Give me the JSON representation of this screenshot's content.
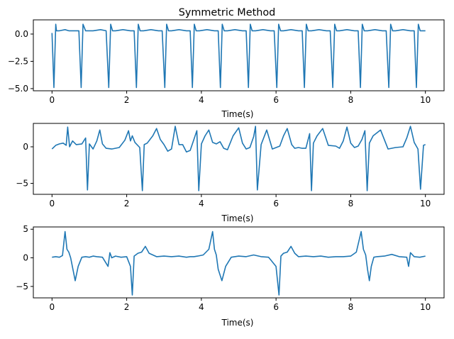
{
  "chart_data": [
    {
      "type": "line",
      "title": "Symmetric Method",
      "xlabel": "Time(s)",
      "ylabel": "",
      "xlim": [
        -0.5,
        10.5
      ],
      "ylim": [
        -5.2,
        1.3
      ],
      "xticks": [
        0,
        2,
        4,
        6,
        8,
        10
      ],
      "xtick_labels": [
        "0",
        "2",
        "4",
        "6",
        "8",
        "10"
      ],
      "yticks": [
        0,
        -2.5,
        -5
      ],
      "ytick_labels": [
        "0.0",
        "−2.5",
        "−5.0"
      ],
      "series": [
        {
          "color": "#1f77b4",
          "x": [
            0.0,
            0.05,
            0.1,
            0.12,
            0.2,
            0.35,
            0.45,
            0.6,
            0.72,
            0.78,
            0.83,
            0.9,
            1.1,
            1.3,
            1.45,
            1.52,
            1.57,
            1.62,
            1.7,
            1.9,
            2.1,
            2.2,
            2.26,
            2.31,
            2.36,
            2.45,
            2.65,
            2.85,
            2.95,
            3.02,
            3.07,
            3.12,
            3.2,
            3.4,
            3.6,
            3.7,
            3.76,
            3.81,
            3.86,
            3.95,
            4.15,
            4.35,
            4.45,
            4.51,
            4.56,
            4.61,
            4.7,
            4.9,
            5.1,
            5.2,
            5.26,
            5.31,
            5.36,
            5.45,
            5.65,
            5.85,
            5.95,
            6.02,
            6.07,
            6.12,
            6.2,
            6.4,
            6.6,
            6.7,
            6.76,
            6.81,
            6.86,
            6.95,
            7.15,
            7.35,
            7.45,
            7.52,
            7.57,
            7.62,
            7.7,
            7.9,
            8.1,
            8.2,
            8.26,
            8.31,
            8.36,
            8.45,
            8.65,
            8.85,
            8.95,
            9.02,
            9.07,
            9.12,
            9.2,
            9.4,
            9.6,
            9.7,
            9.76,
            9.81,
            9.86,
            9.95,
            10.0
          ],
          "y": [
            0.1,
            -4.9,
            0.9,
            0.3,
            0.3,
            0.4,
            0.3,
            0.3,
            0.3,
            -4.9,
            0.9,
            0.3,
            0.3,
            0.4,
            0.3,
            -4.9,
            0.9,
            0.3,
            0.3,
            0.4,
            0.3,
            0.3,
            -4.9,
            0.9,
            0.3,
            0.3,
            0.4,
            0.3,
            0.3,
            -4.9,
            0.9,
            0.3,
            0.3,
            0.4,
            0.3,
            0.3,
            -4.9,
            0.9,
            0.3,
            0.3,
            0.4,
            0.3,
            0.3,
            -4.9,
            0.9,
            0.3,
            0.3,
            0.4,
            0.3,
            0.3,
            -4.9,
            0.9,
            0.3,
            0.3,
            0.4,
            0.3,
            0.3,
            -4.9,
            0.9,
            0.3,
            0.3,
            0.4,
            0.3,
            0.3,
            -4.9,
            0.9,
            0.3,
            0.3,
            0.4,
            0.3,
            0.3,
            -4.9,
            0.9,
            0.3,
            0.3,
            0.4,
            0.3,
            0.3,
            -4.9,
            0.9,
            0.3,
            0.3,
            0.4,
            0.3,
            0.3,
            -4.9,
            0.9,
            0.3,
            0.3,
            0.4,
            0.3,
            0.3,
            -4.9,
            0.9,
            0.3,
            0.3,
            0.3
          ]
        }
      ]
    },
    {
      "type": "line",
      "title": "",
      "xlabel": "Time(s)",
      "ylabel": "",
      "xlim": [
        -0.5,
        10.5
      ],
      "ylim": [
        -6.5,
        3.2
      ],
      "xticks": [
        0,
        2,
        4,
        6,
        8,
        10
      ],
      "xtick_labels": [
        "0",
        "2",
        "4",
        "6",
        "8",
        "10"
      ],
      "yticks": [
        0,
        -5
      ],
      "ytick_labels": [
        "0",
        "−5"
      ],
      "series": [
        {
          "color": "#1f77b4",
          "x": [
            0.0,
            0.1,
            0.2,
            0.3,
            0.38,
            0.42,
            0.47,
            0.55,
            0.65,
            0.8,
            0.9,
            0.95,
            1.0,
            1.1,
            1.2,
            1.28,
            1.35,
            1.45,
            1.6,
            1.8,
            1.95,
            2.05,
            2.1,
            2.15,
            2.22,
            2.35,
            2.42,
            2.47,
            2.55,
            2.7,
            2.8,
            2.9,
            3.0,
            3.1,
            3.2,
            3.3,
            3.4,
            3.5,
            3.6,
            3.7,
            3.8,
            3.88,
            3.93,
            4.0,
            4.1,
            4.2,
            4.3,
            4.4,
            4.5,
            4.6,
            4.7,
            4.85,
            5.0,
            5.1,
            5.2,
            5.3,
            5.4,
            5.45,
            5.5,
            5.6,
            5.75,
            5.9,
            6.1,
            6.2,
            6.3,
            6.42,
            6.5,
            6.6,
            6.7,
            6.8,
            6.9,
            6.95,
            7.0,
            7.1,
            7.25,
            7.4,
            7.6,
            7.7,
            7.8,
            7.9,
            8.0,
            8.1,
            8.2,
            8.3,
            8.38,
            8.44,
            8.5,
            8.6,
            8.8,
            9.0,
            9.2,
            9.4,
            9.5,
            9.6,
            9.7,
            9.8,
            9.87,
            9.95,
            10.0
          ],
          "y": [
            -0.3,
            0.2,
            0.4,
            0.5,
            0.2,
            2.7,
            0.0,
            0.8,
            0.3,
            0.4,
            1.2,
            -5.9,
            0.4,
            -0.3,
            0.8,
            2.3,
            0.4,
            -0.2,
            -0.3,
            -0.1,
            0.9,
            2.2,
            0.8,
            1.5,
            0.6,
            -0.1,
            -6.0,
            0.3,
            0.5,
            1.5,
            2.5,
            1.0,
            0.3,
            -0.6,
            -0.3,
            2.8,
            0.3,
            0.3,
            -0.7,
            -0.5,
            1.0,
            2.2,
            -6.0,
            0.4,
            1.5,
            2.3,
            0.6,
            0.4,
            0.7,
            -0.2,
            -0.4,
            1.5,
            2.6,
            0.5,
            -0.3,
            -0.1,
            1.4,
            2.8,
            -5.9,
            0.3,
            2.3,
            -0.3,
            0.1,
            1.5,
            2.5,
            0.3,
            -0.2,
            -0.1,
            -0.2,
            -0.2,
            1.8,
            -6.0,
            0.5,
            1.5,
            2.5,
            0.2,
            0.1,
            -0.2,
            0.8,
            2.7,
            0.5,
            -0.1,
            0.1,
            1.0,
            2.2,
            -6.0,
            0.5,
            1.5,
            2.3,
            -0.3,
            -0.1,
            0.0,
            1.2,
            2.8,
            0.6,
            -0.3,
            -5.8,
            0.2,
            0.3
          ]
        }
      ]
    },
    {
      "type": "line",
      "title": "",
      "xlabel": "Time(s)",
      "ylabel": "",
      "xlim": [
        -0.5,
        10.5
      ],
      "ylim": [
        -7.0,
        5.4
      ],
      "xticks": [
        0,
        2,
        4,
        6,
        8,
        10
      ],
      "xtick_labels": [
        "0",
        "2",
        "4",
        "6",
        "8",
        "10"
      ],
      "yticks": [
        5,
        0,
        -5
      ],
      "ytick_labels": [
        "5",
        "0",
        "−5"
      ],
      "series": [
        {
          "color": "#1f77b4",
          "x": [
            0.0,
            0.1,
            0.2,
            0.28,
            0.35,
            0.4,
            0.45,
            0.5,
            0.56,
            0.62,
            0.7,
            0.8,
            0.9,
            1.0,
            1.1,
            1.2,
            1.35,
            1.5,
            1.55,
            1.6,
            1.7,
            1.85,
            2.0,
            2.1,
            2.15,
            2.2,
            2.3,
            2.4,
            2.5,
            2.6,
            2.8,
            3.0,
            3.2,
            3.4,
            3.6,
            3.7,
            3.8,
            3.9,
            4.05,
            4.2,
            4.3,
            4.35,
            4.4,
            4.45,
            4.55,
            4.65,
            4.8,
            5.0,
            5.2,
            5.4,
            5.6,
            5.8,
            6.0,
            6.08,
            6.13,
            6.2,
            6.3,
            6.4,
            6.5,
            6.6,
            6.8,
            7.0,
            7.2,
            7.4,
            7.6,
            7.8,
            8.0,
            8.15,
            8.28,
            8.34,
            8.4,
            8.45,
            8.5,
            8.55,
            8.62,
            8.7,
            8.9,
            9.1,
            9.3,
            9.5,
            9.55,
            9.6,
            9.7,
            9.85,
            10.0
          ],
          "y": [
            0.1,
            0.2,
            0.1,
            0.4,
            4.6,
            1.5,
            1.0,
            0.0,
            -2.0,
            -4.0,
            -1.5,
            0.1,
            0.2,
            0.1,
            0.3,
            0.2,
            0.1,
            -1.5,
            0.9,
            0.0,
            0.3,
            0.1,
            0.2,
            -1.5,
            -6.5,
            0.3,
            0.8,
            1.0,
            2.0,
            0.8,
            0.2,
            0.3,
            0.2,
            0.3,
            0.1,
            0.2,
            0.2,
            0.3,
            0.5,
            1.5,
            4.6,
            1.5,
            0.5,
            -2.0,
            -4.0,
            -1.5,
            0.1,
            0.3,
            0.2,
            0.5,
            0.2,
            0.1,
            -1.5,
            -6.5,
            0.3,
            0.8,
            1.0,
            2.0,
            0.8,
            0.2,
            0.3,
            0.2,
            0.3,
            0.1,
            0.2,
            0.2,
            0.3,
            1.0,
            4.6,
            1.5,
            0.5,
            -2.0,
            -4.0,
            -1.5,
            0.1,
            0.2,
            0.3,
            0.6,
            0.2,
            0.1,
            -1.5,
            0.9,
            0.2,
            0.1,
            0.3
          ]
        }
      ]
    }
  ]
}
